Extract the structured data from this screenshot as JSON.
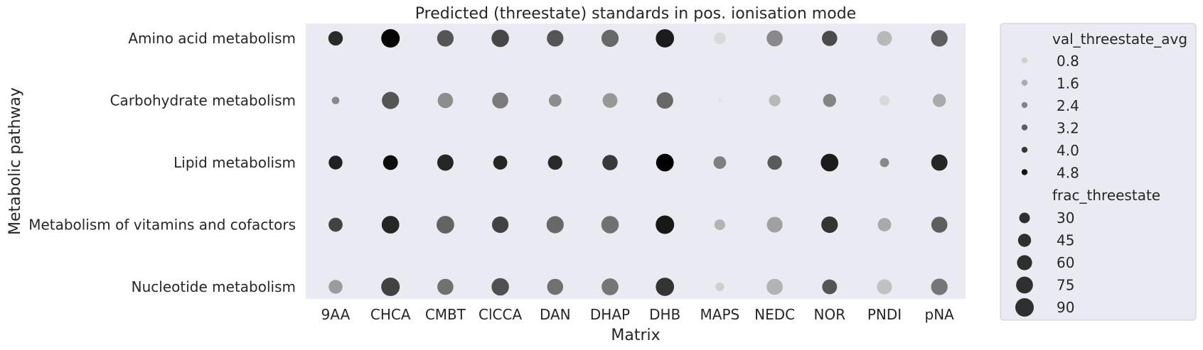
{
  "chart_data": {
    "type": "scatter",
    "title": "Predicted (threestate) standards in pos. ionisation mode",
    "xlabel": "Matrix",
    "ylabel": "Metabolic pathway",
    "categories": [
      "9AA",
      "CHCA",
      "CMBT",
      "ClCCA",
      "DAN",
      "DHAP",
      "DHB",
      "MAPS",
      "NEDC",
      "NOR",
      "PNDI",
      "pNA"
    ],
    "pathways": [
      "Amino acid metabolism",
      "Carbohydrate metabolism",
      "Lipid metabolism",
      "Metabolism of vitamins and cofactors",
      "Nucleotide metabolism"
    ],
    "series": [
      {
        "name": "Amino acid metabolism",
        "frac_threestate": [
          55,
          90,
          72,
          80,
          72,
          78,
          88,
          35,
          68,
          62,
          58,
          72
        ],
        "val_threestate_avg": [
          4.3,
          5.1,
          3.4,
          3.7,
          3.4,
          3.0,
          4.6,
          0.6,
          2.3,
          3.6,
          1.3,
          3.2
        ]
      },
      {
        "name": "Carbohydrate metabolism",
        "frac_threestate": [
          15,
          78,
          62,
          68,
          42,
          58,
          72,
          5,
          35,
          45,
          28,
          45
        ],
        "val_threestate_avg": [
          2.3,
          3.4,
          2.2,
          2.6,
          2.2,
          2.0,
          3.0,
          0.4,
          1.3,
          2.4,
          0.6,
          1.6
        ]
      },
      {
        "name": "Lipid metabolism",
        "frac_threestate": [
          50,
          58,
          70,
          52,
          55,
          62,
          82,
          42,
          55,
          82,
          22,
          70
        ],
        "val_threestate_avg": [
          4.5,
          4.9,
          4.4,
          4.4,
          4.3,
          4.0,
          5.2,
          2.5,
          3.3,
          4.6,
          2.3,
          4.4
        ]
      },
      {
        "name": "Metabolism of vitamins and cofactors",
        "frac_threestate": [
          52,
          82,
          82,
          72,
          78,
          80,
          90,
          30,
          65,
          72,
          48,
          68
        ],
        "val_threestate_avg": [
          3.8,
          4.4,
          3.1,
          3.8,
          3.0,
          2.8,
          4.7,
          1.4,
          1.8,
          4.1,
          1.6,
          3.2
        ]
      },
      {
        "name": "Nucleotide metabolism",
        "frac_threestate": [
          50,
          90,
          68,
          80,
          68,
          75,
          88,
          20,
          68,
          58,
          60,
          72
        ],
        "val_threestate_avg": [
          1.9,
          3.8,
          2.8,
          3.5,
          2.8,
          2.7,
          4.1,
          0.8,
          1.4,
          3.4,
          1.1,
          2.7
        ]
      }
    ],
    "hue_legend": {
      "title": "val_threestate_avg",
      "values": [
        "0.8",
        "1.6",
        "2.4",
        "3.2",
        "4.0",
        "4.8"
      ]
    },
    "size_legend": {
      "title": "frac_threestate",
      "values": [
        "30",
        "45",
        "60",
        "75",
        "90"
      ]
    },
    "colors": {
      "plot_background": "#eaeaf2",
      "legend_background": "#eaeaf2",
      "legend_border": "#cccccc",
      "text": "#262626"
    },
    "grid": false,
    "legend_placement": "outside right"
  }
}
